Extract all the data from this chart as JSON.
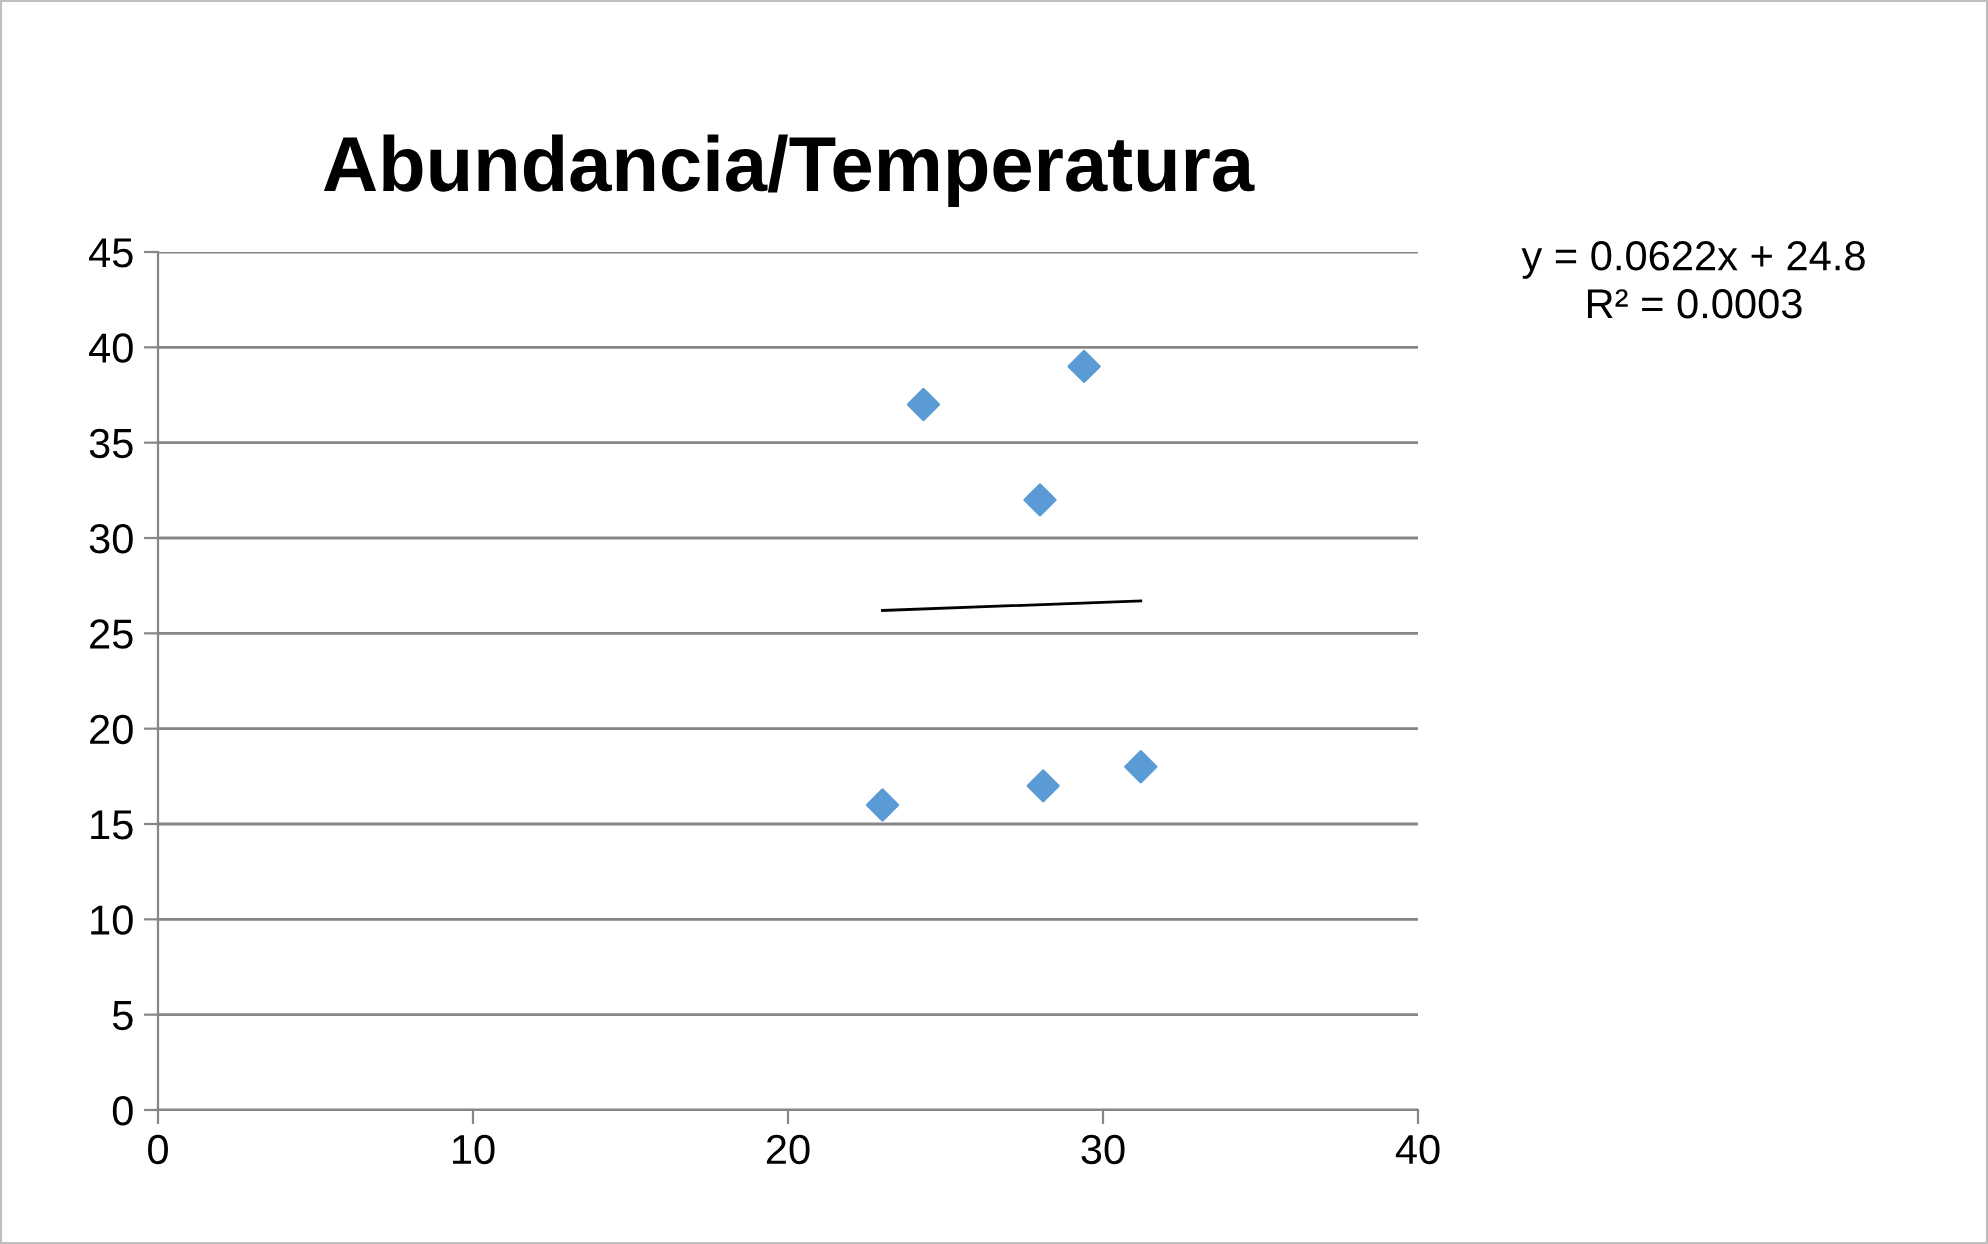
{
  "chart_data": {
    "type": "scatter",
    "title": "Abundancia/Temperatura",
    "series": [
      {
        "color": "#5b9bd5",
        "marker": "diamond",
        "x": [
          23,
          24.3,
          29.4,
          28,
          28.1,
          31.2
        ],
        "values": [
          16,
          37,
          39,
          32,
          17,
          18
        ]
      },
      {
        "type": "line",
        "color": "#000000",
        "marker": "none",
        "line_style": "solid",
        "x": [
          23,
          31.2
        ],
        "values": [
          26.2,
          26.7
        ]
      }
    ],
    "annotations": [
      "y = 0.0622x + 24.8\nR² = 0.0003"
    ],
    "xlim": [
      0,
      40
    ],
    "xticks": [
      0,
      10,
      20,
      30,
      40
    ],
    "ylim": [
      0,
      45
    ],
    "yticks": [
      0,
      5,
      10,
      15,
      20,
      25,
      30,
      35,
      40,
      45
    ],
    "grid": "y",
    "legend": false
  }
}
